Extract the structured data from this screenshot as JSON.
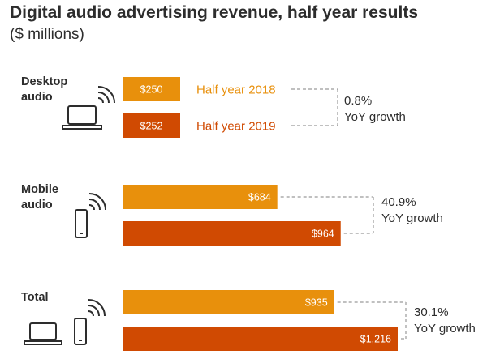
{
  "title": "Digital audio advertising revenue, half year results",
  "subtitle": "($ millions)",
  "colors": {
    "h2018": "#E8900C",
    "h2019": "#D04A02",
    "text": "#2d2d2d",
    "dash": "#9a9a9a"
  },
  "groups": [
    {
      "label_line1": "Desktop",
      "label_line2": "audio",
      "growth_pct": "0.8%",
      "growth_label": "YoY growth",
      "icons": [
        "laptop-icon",
        "sound-waves-icon"
      ]
    },
    {
      "label_line1": "Mobile",
      "label_line2": "audio",
      "growth_pct": "40.9%",
      "growth_label": "YoY growth",
      "icons": [
        "phone-icon",
        "sound-waves-icon"
      ]
    },
    {
      "label_line1": "Total",
      "label_line2": "",
      "growth_pct": "30.1%",
      "growth_label": "YoY growth",
      "icons": [
        "laptop-icon",
        "phone-icon",
        "sound-waves-icon"
      ]
    }
  ],
  "chart_data": {
    "type": "bar",
    "orientation": "horizontal",
    "title": "Digital audio advertising revenue, half year results",
    "subtitle": "($ millions)",
    "categories": [
      "Desktop audio",
      "Mobile audio",
      "Total"
    ],
    "series": [
      {
        "name": "Half year 2018",
        "values": [
          250,
          684,
          935
        ],
        "labels": [
          "$250",
          "$684",
          "$935"
        ]
      },
      {
        "name": "Half year 2019",
        "values": [
          252,
          964,
          1216
        ],
        "labels": [
          "$252",
          "$964",
          "$1,216"
        ]
      }
    ],
    "yoy_growth": [
      "0.8%",
      "40.9%",
      "30.1%"
    ],
    "xlabel": "",
    "ylabel": "",
    "xlim": [
      0,
      1216
    ],
    "grid": false,
    "legend": "inline next to Desktop audio bars"
  }
}
